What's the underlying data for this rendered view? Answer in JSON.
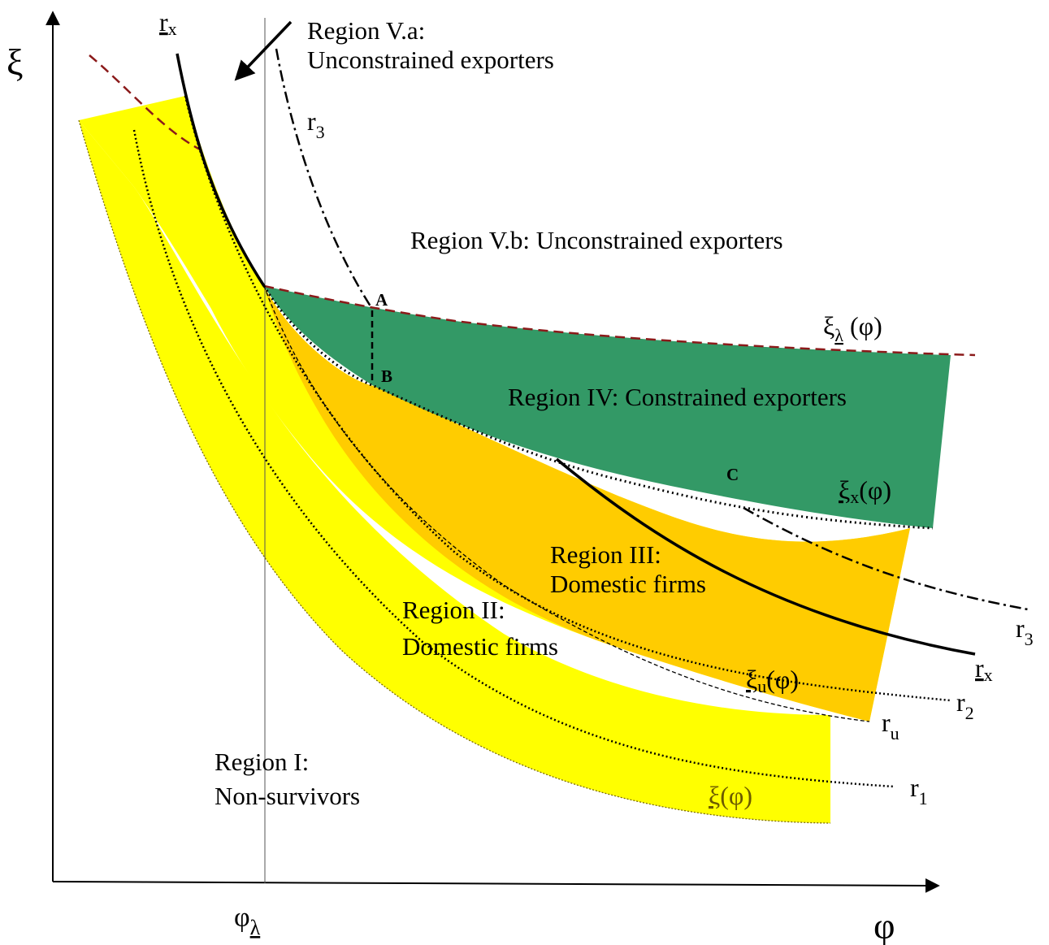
{
  "colors": {
    "region_ii": "#ffff00",
    "region_iii": "#ffcc00",
    "region_iv": "#339966",
    "xi_lambda_curve": "#8b1a1a",
    "xi_label": "#6b5a00",
    "curves": "#000000"
  },
  "axes": {
    "y_symbol": "ξ",
    "x_symbol": "φ",
    "x_tick": {
      "main": "φ",
      "sub": "λ"
    }
  },
  "regions": {
    "va": {
      "line1": "Region V.a:",
      "line2": "Unconstrained exporters"
    },
    "vb": {
      "text": "Region V.b: Unconstrained exporters"
    },
    "iv": {
      "text": "Region IV: Constrained exporters"
    },
    "iii": {
      "line1": "Region III:",
      "line2": "Domestic firms"
    },
    "ii": {
      "line1": "Region II:",
      "line2": "Domestic firms"
    },
    "i": {
      "line1": "Region I:",
      "line2": "Non-survivors"
    }
  },
  "points": {
    "a": "A",
    "b": "B",
    "c": "C"
  },
  "curve_labels": {
    "rx_top": {
      "main": "r",
      "sub": "x"
    },
    "rx_right": {
      "main": "r",
      "sub": "x"
    },
    "r3_top": {
      "main": "r",
      "sub": "3"
    },
    "r3_right": {
      "main": "r",
      "sub": "3"
    },
    "r2": {
      "main": "r",
      "sub": "2"
    },
    "ru": {
      "main": "r",
      "sub": "u"
    },
    "r1": {
      "main": "r",
      "sub": "1"
    },
    "xi_lambda": {
      "main": "ξ",
      "sub": "λ",
      "arg": " (φ)"
    },
    "xi_x": {
      "main": "ξ",
      "sub": "x",
      "arg": "(φ)"
    },
    "xi_u": {
      "main": "ξ",
      "sub": "u",
      "arg": "(φ)"
    },
    "xi": {
      "main": "ξ",
      "arg": "(φ)"
    }
  }
}
